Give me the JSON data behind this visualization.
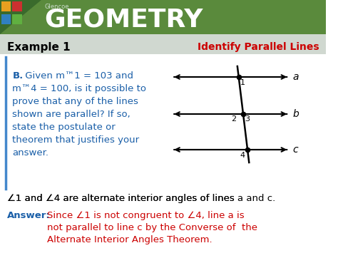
{
  "header_bg": "#5a8a3c",
  "header_text": "GEOMETRY",
  "header_text_color": "#ffffff",
  "header_small_text": "Glencoe",
  "example_label": "Example 1",
  "example_label_color": "#000000",
  "example_bg": "#e8e8e8",
  "title_right": "Identify Parallel Lines",
  "title_right_color": "#cc0000",
  "body_bg": "#ffffff",
  "question_bold": "B.",
  "question_bold_color": "#1a5fa8",
  "question_text_color": "#1a5fa8",
  "question_line1": " Given m⇑1 = 103 and",
  "question_line2": "m⇑4 = 100, is it possible to",
  "question_line3": "prove that any of the lines",
  "question_line4": "shown are parallel? If so,",
  "question_line5": "state the postulate or",
  "question_line6": "theorem that justifies your",
  "question_line7": "answer.",
  "angle_stmt": "⇑1 and ⇑4 are alternate interior angles of lines à and č.",
  "angle_stmt_color": "#000000",
  "answer_label": "Answer:",
  "answer_label_color": "#1a5fa8",
  "answer_line1": "Since ⇑1 is not congruent to ⇑4, line à is",
  "answer_line2": "not parallel to line č by the Converse of  the",
  "answer_line3": "Alternate Interior Angles Theorem.",
  "answer_text_color": "#cc0000",
  "line_color": "#000000",
  "dot_color": "#000000",
  "label_color": "#000000"
}
